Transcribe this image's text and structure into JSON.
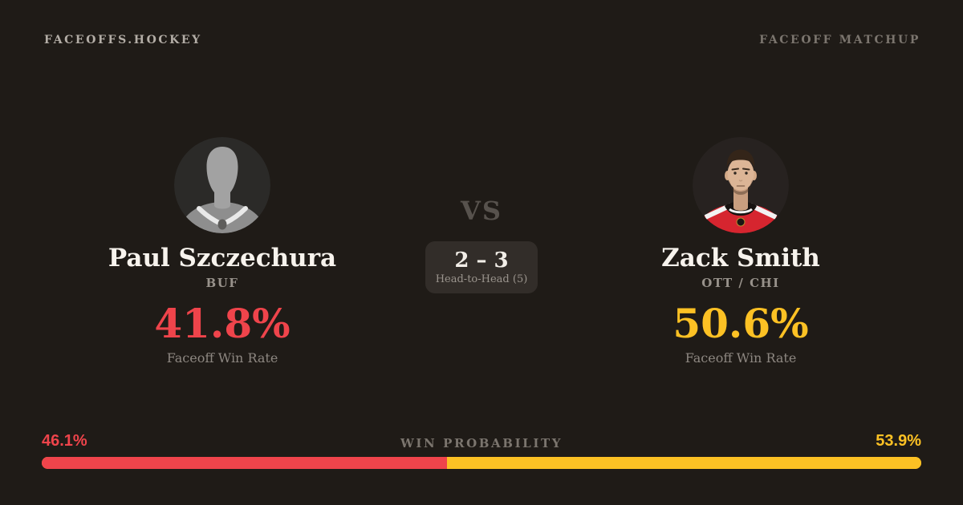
{
  "theme": {
    "bg": "#1f1b17",
    "red": "#ef444b",
    "yellow": "#fcc124",
    "text-primary": "#f7f3ed",
    "text-muted": "#8d8781"
  },
  "header": {
    "brand": "FACEOFFS.HOCKEY",
    "page_label": "FACEOFF MATCHUP"
  },
  "matchup": {
    "left": {
      "name": "Paul Szczechura",
      "team": "BUF",
      "faceoff_win_rate": "41.8%",
      "stat_label": "Faceoff Win Rate",
      "accent_color": "#ef444b",
      "avatar": "generic-player-silhouette"
    },
    "right": {
      "name": "Zack Smith",
      "team": "OTT / CHI",
      "faceoff_win_rate": "50.6%",
      "stat_label": "Faceoff Win Rate",
      "accent_color": "#fcc124",
      "avatar": "player-headshot-red-jersey"
    },
    "versus_label": "VS",
    "head_to_head": {
      "score": "2 – 3",
      "caption": "Head-to-Head (5)"
    }
  },
  "win_probability": {
    "label": "WIN PROBABILITY",
    "left": {
      "value": 46.1,
      "display": "46.1%"
    },
    "right": {
      "value": 53.9,
      "display": "53.9%"
    }
  }
}
